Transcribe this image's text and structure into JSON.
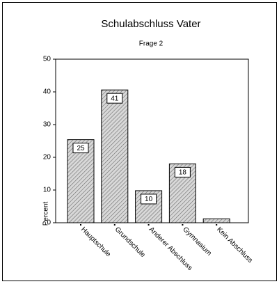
{
  "chart_data": {
    "type": "bar",
    "title": "Schulabschluss Vater",
    "subtitle": "Frage 2",
    "y_label": "Percent",
    "categories": [
      "Hauptschule",
      "Grundschule",
      "Anderer Abschluss",
      "Gymnasium",
      "Kein Abschluss"
    ],
    "values": [
      25.4,
      40.6,
      9.8,
      18.0,
      1.2
    ],
    "value_labels": [
      "25",
      "41",
      "10",
      "18",
      null
    ],
    "color": "#b8b8b8",
    "ylim": [
      0,
      50
    ],
    "yticks": [
      0,
      10,
      20,
      30,
      40,
      50
    ],
    "grid": false
  }
}
